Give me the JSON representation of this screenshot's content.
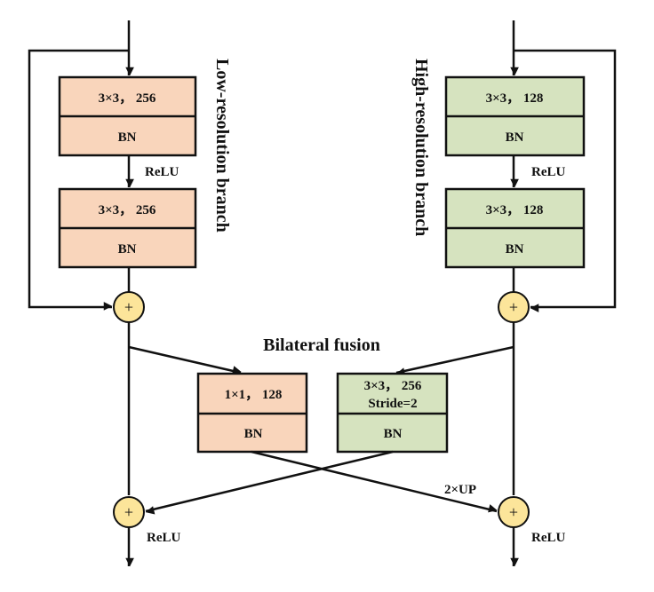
{
  "colors": {
    "low_branch": "#f9d5bb",
    "high_branch": "#d6e3bf",
    "add_node": "#fce59a",
    "line": "#111111"
  },
  "low_branch": {
    "title": "Low-resolution branch",
    "conv1": "3×3， 256",
    "bn1": "BN",
    "relu": "ReLU",
    "conv2": "3×3， 256",
    "bn2": "BN"
  },
  "high_branch": {
    "title": "High-resolution branch",
    "conv1": "3×3， 128",
    "bn1": "BN",
    "relu": "ReLU",
    "conv2": "3×3， 128",
    "bn2": "BN"
  },
  "fusion": {
    "title": "Bilateral fusion",
    "low_to_high": {
      "conv": "1×1， 128",
      "bn": "BN",
      "op": "2×UP"
    },
    "high_to_low": {
      "conv": "3×3， 256",
      "stride": "Stride=2",
      "bn": "BN"
    },
    "relu_left": "ReLU",
    "relu_right": "ReLU",
    "add_symbol": "+"
  }
}
